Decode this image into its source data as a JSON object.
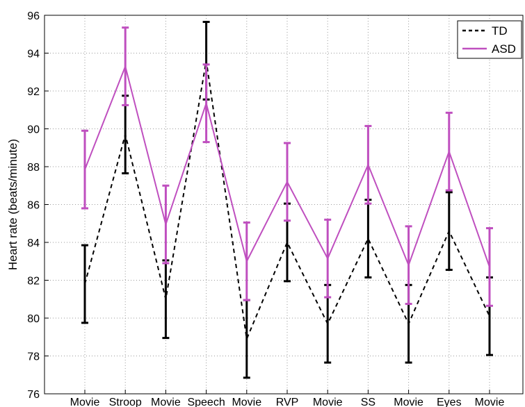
{
  "chart_data": {
    "type": "line",
    "title": "",
    "xlabel": "",
    "ylabel": "Heart rate (beats/minute)",
    "categories": [
      "Movie",
      "Stroop",
      "Movie",
      "Speech",
      "Movie",
      "RVP",
      "Movie",
      "SS",
      "Movie",
      "Eyes",
      "Movie"
    ],
    "ylim": [
      76,
      96
    ],
    "yticks": [
      76,
      78,
      80,
      82,
      84,
      86,
      88,
      90,
      92,
      94,
      96
    ],
    "grid": true,
    "legend_position": "top-right",
    "series": [
      {
        "name": "TD",
        "color": "#000000",
        "line_style": "dashed",
        "values": [
          81.8,
          89.7,
          81.0,
          93.6,
          78.9,
          84.0,
          79.7,
          84.2,
          79.7,
          84.6,
          80.1
        ],
        "errors": [
          2.05,
          2.05,
          2.05,
          2.05,
          2.05,
          2.05,
          2.05,
          2.05,
          2.05,
          2.05,
          2.05
        ]
      },
      {
        "name": "ASD",
        "color": "#bf4fbf",
        "line_style": "solid",
        "values": [
          87.85,
          93.3,
          84.95,
          91.35,
          83.0,
          87.2,
          83.15,
          88.1,
          82.8,
          88.8,
          82.7
        ],
        "errors": [
          2.05,
          2.05,
          2.05,
          2.05,
          2.05,
          2.05,
          2.05,
          2.05,
          2.05,
          2.05,
          2.05
        ]
      }
    ]
  }
}
